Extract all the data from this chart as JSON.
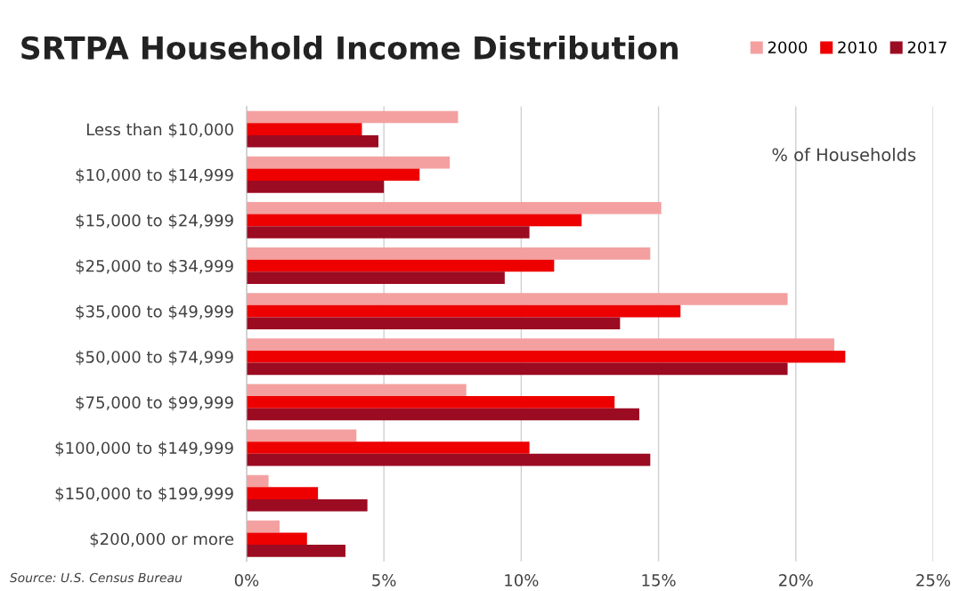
{
  "chart_data": {
    "type": "bar",
    "orientation": "horizontal",
    "title": "SRTPA Household Income Distribution",
    "categories": [
      "Less than $10,000",
      "$10,000 to $14,999",
      "$15,000 to $24,999",
      "$25,000 to $34,999",
      "$35,000 to $49,999",
      "$50,000 to $74,999",
      "$75,000 to $99,999",
      "$100,000 to $149,999",
      "$150,000 to $199,999",
      "$200,000 or more"
    ],
    "series": [
      {
        "name": "2000",
        "color": "#f4a0a0",
        "values": [
          7.7,
          7.4,
          15.1,
          14.7,
          19.7,
          21.4,
          8.0,
          4.0,
          0.8,
          1.2
        ]
      },
      {
        "name": "2010",
        "color": "#ee0000",
        "values": [
          4.2,
          6.3,
          12.2,
          11.2,
          15.8,
          21.8,
          13.4,
          10.3,
          2.6,
          2.2
        ]
      },
      {
        "name": "2017",
        "color": "#9b0b22",
        "values": [
          4.8,
          5.0,
          10.3,
          9.4,
          13.6,
          19.7,
          14.3,
          14.7,
          4.4,
          3.6
        ]
      }
    ],
    "xlim": [
      0,
      25
    ],
    "xticks": [
      {
        "value": 0,
        "label": "0%"
      },
      {
        "value": 5,
        "label": "5%"
      },
      {
        "value": 10,
        "label": "10%"
      },
      {
        "value": 15,
        "label": "15%"
      },
      {
        "value": 20,
        "label": "20%"
      },
      {
        "value": 25,
        "label": "25%"
      }
    ],
    "grid": "x",
    "legend": "top right",
    "annotations": [
      "% of Households",
      "Source: U.S. Census Bureau"
    ]
  }
}
